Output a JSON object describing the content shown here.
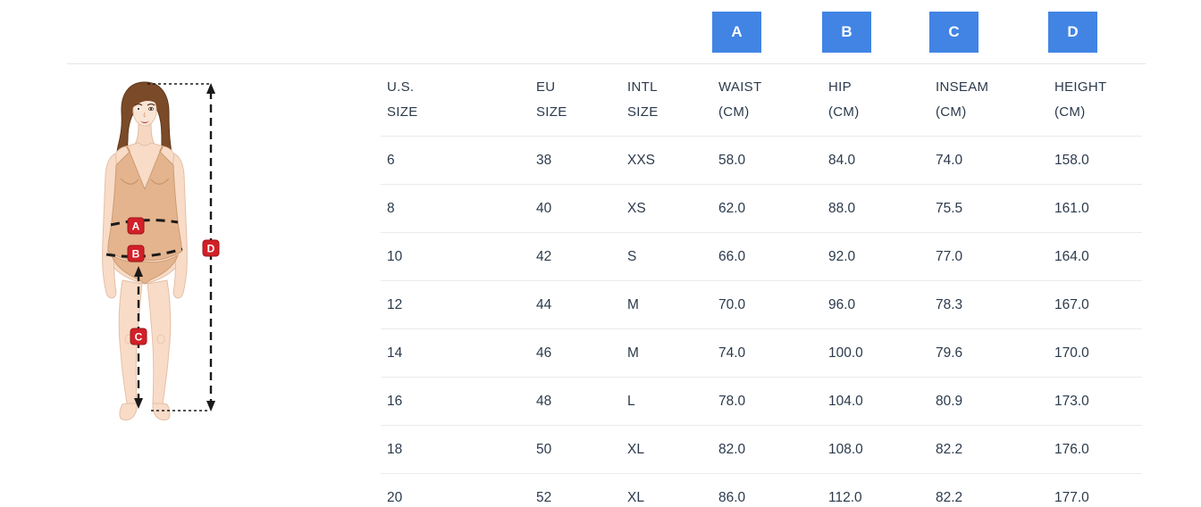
{
  "figure": {
    "alt": "Female body diagram showing waist, hip, inseam and height measurement points",
    "markers": {
      "a": "A",
      "b": "B",
      "c": "C",
      "d": "D"
    }
  },
  "table": {
    "columns": [
      {
        "key": "us-size",
        "line1": "U.S.",
        "line2": "SIZE",
        "badge": null
      },
      {
        "key": "eu-size",
        "line1": "EU",
        "line2": "SIZE",
        "badge": null
      },
      {
        "key": "intl-size",
        "line1": "INTL",
        "line2": "SIZE",
        "badge": null
      },
      {
        "key": "waist-cm",
        "line1": "WAIST",
        "line2": "(CM)",
        "badge": "A"
      },
      {
        "key": "hip-cm",
        "line1": "HIP",
        "line2": "(CM)",
        "badge": "B"
      },
      {
        "key": "inseam-cm",
        "line1": "INSEAM",
        "line2": "(CM)",
        "badge": "C"
      },
      {
        "key": "height-cm",
        "line1": "HEIGHT",
        "line2": "(CM)",
        "badge": "D"
      }
    ],
    "rows": [
      [
        "6",
        "38",
        "XXS",
        "58.0",
        "84.0",
        "74.0",
        "158.0"
      ],
      [
        "8",
        "40",
        "XS",
        "62.0",
        "88.0",
        "75.5",
        "161.0"
      ],
      [
        "10",
        "42",
        "S",
        "66.0",
        "92.0",
        "77.0",
        "164.0"
      ],
      [
        "12",
        "44",
        "M",
        "70.0",
        "96.0",
        "78.3",
        "167.0"
      ],
      [
        "14",
        "46",
        "M",
        "74.0",
        "100.0",
        "79.6",
        "170.0"
      ],
      [
        "16",
        "48",
        "L",
        "78.0",
        "104.0",
        "80.9",
        "173.0"
      ],
      [
        "18",
        "50",
        "XL",
        "82.0",
        "108.0",
        "82.2",
        "176.0"
      ],
      [
        "20",
        "52",
        "XL",
        "86.0",
        "112.0",
        "82.2",
        "177.0"
      ]
    ]
  },
  "colors": {
    "badge_blue": "#4184e4",
    "marker_red": "#d22028",
    "text_dark": "#2b3a4c",
    "divider": "#e9ebed"
  }
}
